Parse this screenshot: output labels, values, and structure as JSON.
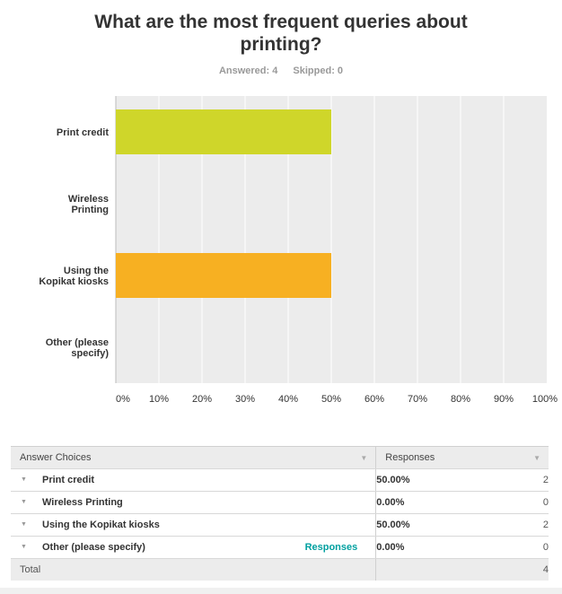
{
  "title": "What are the most frequent queries about printing?",
  "answered": "Answered: 4",
  "skipped": "Skipped: 0",
  "colors": {
    "plot_bg": "#ececec",
    "grid": "#ffffff",
    "bar_series": [
      "#cfd62a",
      "#cfd62a",
      "#f7b022",
      "#f7b022"
    ]
  },
  "chart_data": {
    "type": "bar",
    "orientation": "horizontal",
    "categories": [
      "Print credit",
      "Wireless Printing",
      "Using the Kopikat kiosks",
      "Other (please specify)"
    ],
    "category_lines": [
      [
        "Print credit"
      ],
      [
        "Wireless",
        "Printing"
      ],
      [
        "Using the",
        "Kopikat kiosks"
      ],
      [
        "Other (please",
        "specify)"
      ]
    ],
    "values": [
      50,
      0,
      50,
      0
    ],
    "xlim": [
      0,
      100
    ],
    "xticks": [
      "0%",
      "10%",
      "20%",
      "30%",
      "40%",
      "50%",
      "60%",
      "70%",
      "80%",
      "90%",
      "100%"
    ],
    "grid": true
  },
  "table": {
    "headers": {
      "choices": "Answer Choices",
      "responses": "Responses"
    },
    "rows": [
      {
        "label": "Print credit",
        "percent": "50.00%",
        "count": "2",
        "link": ""
      },
      {
        "label": "Wireless Printing",
        "percent": "0.00%",
        "count": "0",
        "link": ""
      },
      {
        "label": "Using the Kopikat kiosks",
        "percent": "50.00%",
        "count": "2",
        "link": ""
      },
      {
        "label": "Other (please specify)",
        "percent": "0.00%",
        "count": "0",
        "link": "Responses"
      }
    ],
    "total_label": "Total",
    "total_value": "4"
  }
}
